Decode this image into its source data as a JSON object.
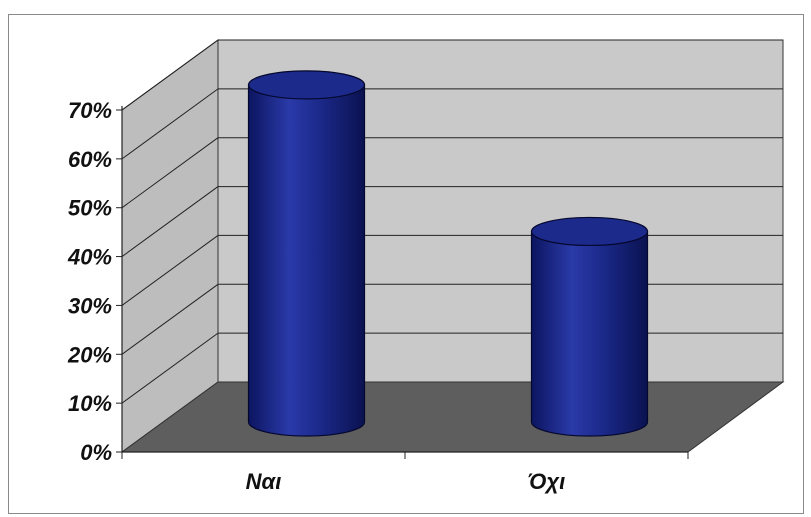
{
  "chart_data": {
    "type": "bar",
    "style": "3d-cylinder",
    "categories": [
      "Ναι",
      "Όχι"
    ],
    "values": [
      69,
      39
    ],
    "ylim": [
      0,
      70
    ],
    "yticks": [
      "0%",
      "10%",
      "20%",
      "30%",
      "40%",
      "50%",
      "60%",
      "70%"
    ],
    "grid": true,
    "legend": "none",
    "colors": {
      "bar": "#1c2a8c",
      "bar_dark": "#0c1560",
      "back_wall": "#c9c9c9",
      "side_wall": "#bdbdbd",
      "floor": "#5e5e5e"
    }
  }
}
